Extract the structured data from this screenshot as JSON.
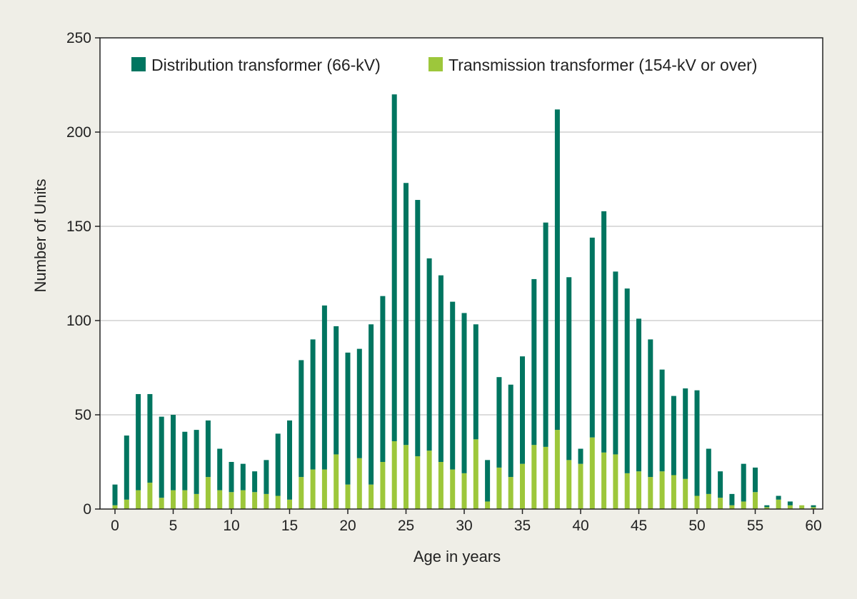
{
  "chart_data": {
    "type": "bar",
    "stacked": true,
    "title": "",
    "xlabel": "Age in years",
    "ylabel": "Number of Units",
    "xlim": [
      0,
      60
    ],
    "ylim": [
      0,
      250
    ],
    "xticks": [
      0,
      5,
      10,
      15,
      20,
      25,
      30,
      35,
      40,
      45,
      50,
      55,
      60
    ],
    "yticks": [
      0,
      50,
      100,
      150,
      200,
      250
    ],
    "grid": "horizontal",
    "legend_position": "top",
    "x": [
      0,
      1,
      2,
      3,
      4,
      5,
      6,
      7,
      8,
      9,
      10,
      11,
      12,
      13,
      14,
      15,
      16,
      17,
      18,
      19,
      20,
      21,
      22,
      23,
      24,
      25,
      26,
      27,
      28,
      29,
      30,
      31,
      32,
      33,
      34,
      35,
      36,
      37,
      38,
      39,
      40,
      41,
      42,
      43,
      44,
      45,
      46,
      47,
      48,
      49,
      50,
      51,
      52,
      53,
      54,
      55,
      56,
      57,
      58,
      59,
      60
    ],
    "series": [
      {
        "name": "Transmission transformer (154-kV or over)",
        "color": "#9dc73b",
        "values": [
          2,
          5,
          10,
          14,
          6,
          10,
          10,
          8,
          17,
          10,
          9,
          10,
          9,
          8,
          7,
          5,
          17,
          21,
          21,
          29,
          13,
          27,
          13,
          25,
          36,
          34,
          28,
          31,
          25,
          21,
          19,
          37,
          4,
          22,
          17,
          24,
          34,
          33,
          42,
          26,
          24,
          38,
          30,
          29,
          19,
          20,
          17,
          20,
          18,
          16,
          7,
          8,
          6,
          2,
          4,
          9,
          1,
          5,
          2,
          2,
          1
        ]
      },
      {
        "name": "Distribution transformer (66-kV)",
        "color": "#007560",
        "values": [
          11,
          34,
          51,
          47,
          43,
          40,
          31,
          34,
          30,
          22,
          16,
          14,
          11,
          18,
          33,
          42,
          62,
          69,
          87,
          68,
          70,
          58,
          85,
          88,
          184,
          139,
          136,
          102,
          99,
          89,
          85,
          61,
          22,
          48,
          49,
          57,
          88,
          119,
          170,
          97,
          8,
          106,
          128,
          97,
          98,
          81,
          73,
          54,
          42,
          48,
          56,
          24,
          14,
          6,
          20,
          13,
          1,
          2,
          2,
          0,
          1
        ]
      }
    ]
  }
}
